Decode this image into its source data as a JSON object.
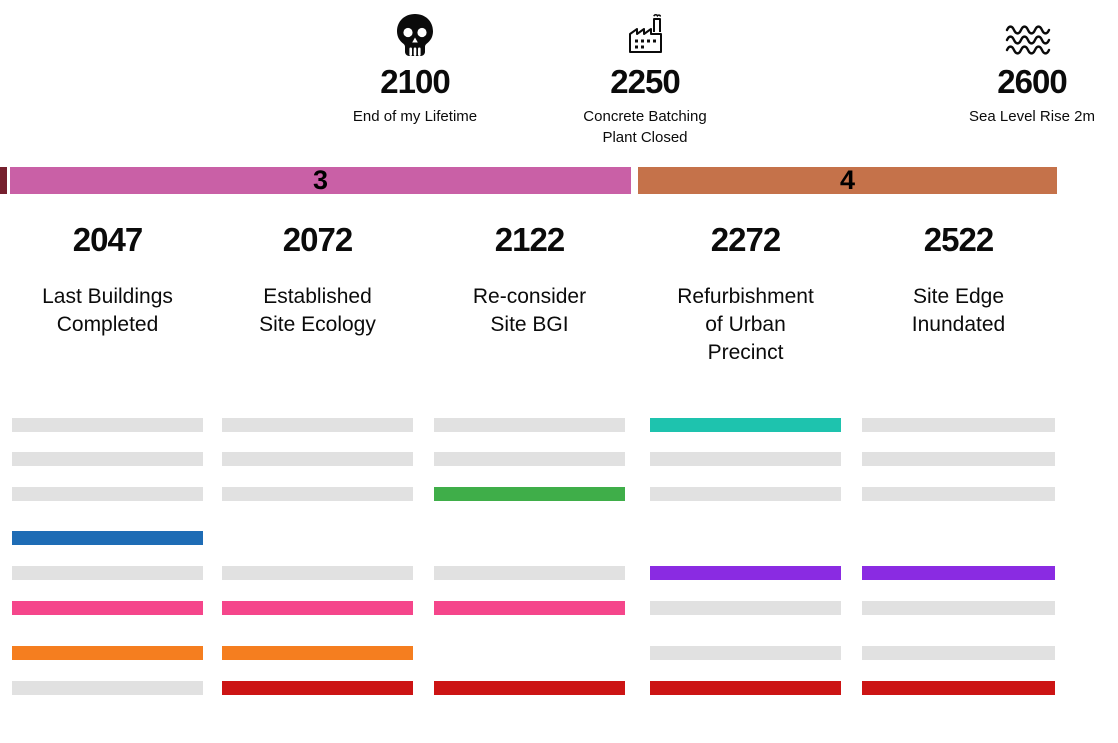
{
  "milestones": [
    {
      "icon": "skull-icon",
      "year": "2100",
      "label": "End of my Lifetime"
    },
    {
      "icon": "factory-icon",
      "year": "2250",
      "label": "Concrete Batching\nPlant Closed"
    },
    {
      "icon": "waves-icon",
      "year": "2600",
      "label": "Sea Level Rise 2m"
    }
  ],
  "timeline_segments": [
    {
      "label": "",
      "color": "#76202e"
    },
    {
      "label": "3",
      "color": "#c960a6"
    },
    {
      "label": "4",
      "color": "#c5724a"
    }
  ],
  "events": [
    {
      "year": "2047",
      "label": "Last Buildings\nCompleted",
      "bars": [
        "gray",
        "gray",
        "gray",
        "blue",
        "gray",
        "pink",
        "orange",
        "gray"
      ]
    },
    {
      "year": "2072",
      "label": "Established\nSite Ecology",
      "bars": [
        "gray",
        "gray",
        "gray",
        null,
        "gray",
        "pink",
        "orange",
        "red"
      ]
    },
    {
      "year": "2122",
      "label": "Re-consider\nSite BGI",
      "bars": [
        "gray",
        "gray",
        "green",
        null,
        "gray",
        "pink",
        null,
        "red"
      ]
    },
    {
      "year": "2272",
      "label": "Refurbishment\nof Urban\nPrecinct",
      "bars": [
        "teal",
        "gray",
        "gray",
        null,
        "purple",
        "gray",
        "gray",
        "red"
      ]
    },
    {
      "year": "2522",
      "label": "Site Edge\nInundated",
      "bars": [
        "gray",
        "gray",
        "gray",
        null,
        "purple",
        "gray",
        "gray",
        "red"
      ]
    }
  ],
  "bar_colors": {
    "gray": "#e1e1e1",
    "blue": "#1e6cb5",
    "pink": "#f5468b",
    "orange": "#f57e1f",
    "red": "#cc1414",
    "green": "#3fae49",
    "teal": "#1ec3ae",
    "purple": "#8a2be2"
  }
}
